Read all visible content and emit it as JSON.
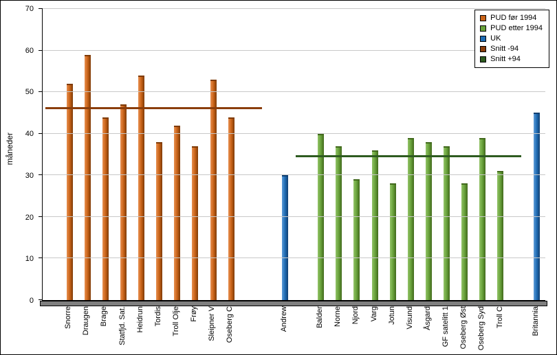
{
  "chart_data": {
    "type": "bar",
    "title": "",
    "xlabel": "",
    "ylabel": "måneder",
    "ylim": [
      0,
      70
    ],
    "yticks": [
      0,
      10,
      20,
      30,
      40,
      50,
      60,
      70
    ],
    "grid": true,
    "legend_position": "top-right",
    "slots": [
      {
        "label": "",
        "value": null,
        "series": null
      },
      {
        "label": "Snorre",
        "value": 52,
        "series": "pud_for"
      },
      {
        "label": "Draugen",
        "value": 59,
        "series": "pud_for"
      },
      {
        "label": "Brage",
        "value": 44,
        "series": "pud_for"
      },
      {
        "label": "Statfjd. Sat.",
        "value": 47,
        "series": "pud_for"
      },
      {
        "label": "Heidrun",
        "value": 54,
        "series": "pud_for"
      },
      {
        "label": "Tordis",
        "value": 38,
        "series": "pud_for"
      },
      {
        "label": "Troll Olje",
        "value": 42,
        "series": "pud_for"
      },
      {
        "label": "Frøy",
        "value": 37,
        "series": "pud_for"
      },
      {
        "label": "Sleipner V",
        "value": 53,
        "series": "pud_for"
      },
      {
        "label": "Oseberg C",
        "value": 44,
        "series": "pud_for"
      },
      {
        "label": "",
        "value": null,
        "series": null
      },
      {
        "label": "",
        "value": null,
        "series": null
      },
      {
        "label": "Andrew",
        "value": 30,
        "series": "uk"
      },
      {
        "label": "",
        "value": null,
        "series": null
      },
      {
        "label": "Balder",
        "value": 40,
        "series": "pud_etter"
      },
      {
        "label": "Norne",
        "value": 37,
        "series": "pud_etter"
      },
      {
        "label": "Njord",
        "value": 29,
        "series": "pud_etter"
      },
      {
        "label": "Varg",
        "value": 36,
        "series": "pud_etter"
      },
      {
        "label": "Jotun",
        "value": 28,
        "series": "pud_etter"
      },
      {
        "label": "Visund",
        "value": 39,
        "series": "pud_etter"
      },
      {
        "label": "Åsgard",
        "value": 38,
        "series": "pud_etter"
      },
      {
        "label": "GF satelitt 1",
        "value": 37,
        "series": "pud_etter"
      },
      {
        "label": "Oseberg Øst",
        "value": 28,
        "series": "pud_etter"
      },
      {
        "label": "Oseberg Syd",
        "value": 39,
        "series": "pud_etter"
      },
      {
        "label": "Troll C",
        "value": 31,
        "series": "pud_etter"
      },
      {
        "label": "",
        "value": null,
        "series": null
      },
      {
        "label": "Britannia",
        "value": 45,
        "series": "uk"
      }
    ],
    "series_colors": {
      "pud_for": {
        "base": "#C96318",
        "light": "#E89050",
        "dark": "#7E3A06"
      },
      "pud_etter": {
        "base": "#69A23B",
        "light": "#93C468",
        "dark": "#41691C"
      },
      "uk": {
        "base": "#1F6CB4",
        "light": "#5E9CD8",
        "dark": "#113F70"
      }
    },
    "avg_lines": [
      {
        "name": "Snitt -94",
        "value": 46,
        "color": "#8A3D0B",
        "x_start": 0.006,
        "x_end": 0.437
      },
      {
        "name": "Snitt +94",
        "value": 34.5,
        "color": "#2E5B20",
        "x_start": 0.503,
        "x_end": 0.952
      }
    ],
    "legend": [
      {
        "label": "PUD før 1994",
        "color": "#C96318"
      },
      {
        "label": "PUD etter 1994",
        "color": "#69A23B"
      },
      {
        "label": "UK",
        "color": "#1F6CB4"
      },
      {
        "label": "Snitt -94",
        "color": "#8A3D0B"
      },
      {
        "label": "Snitt +94",
        "color": "#2E5B20"
      }
    ]
  }
}
